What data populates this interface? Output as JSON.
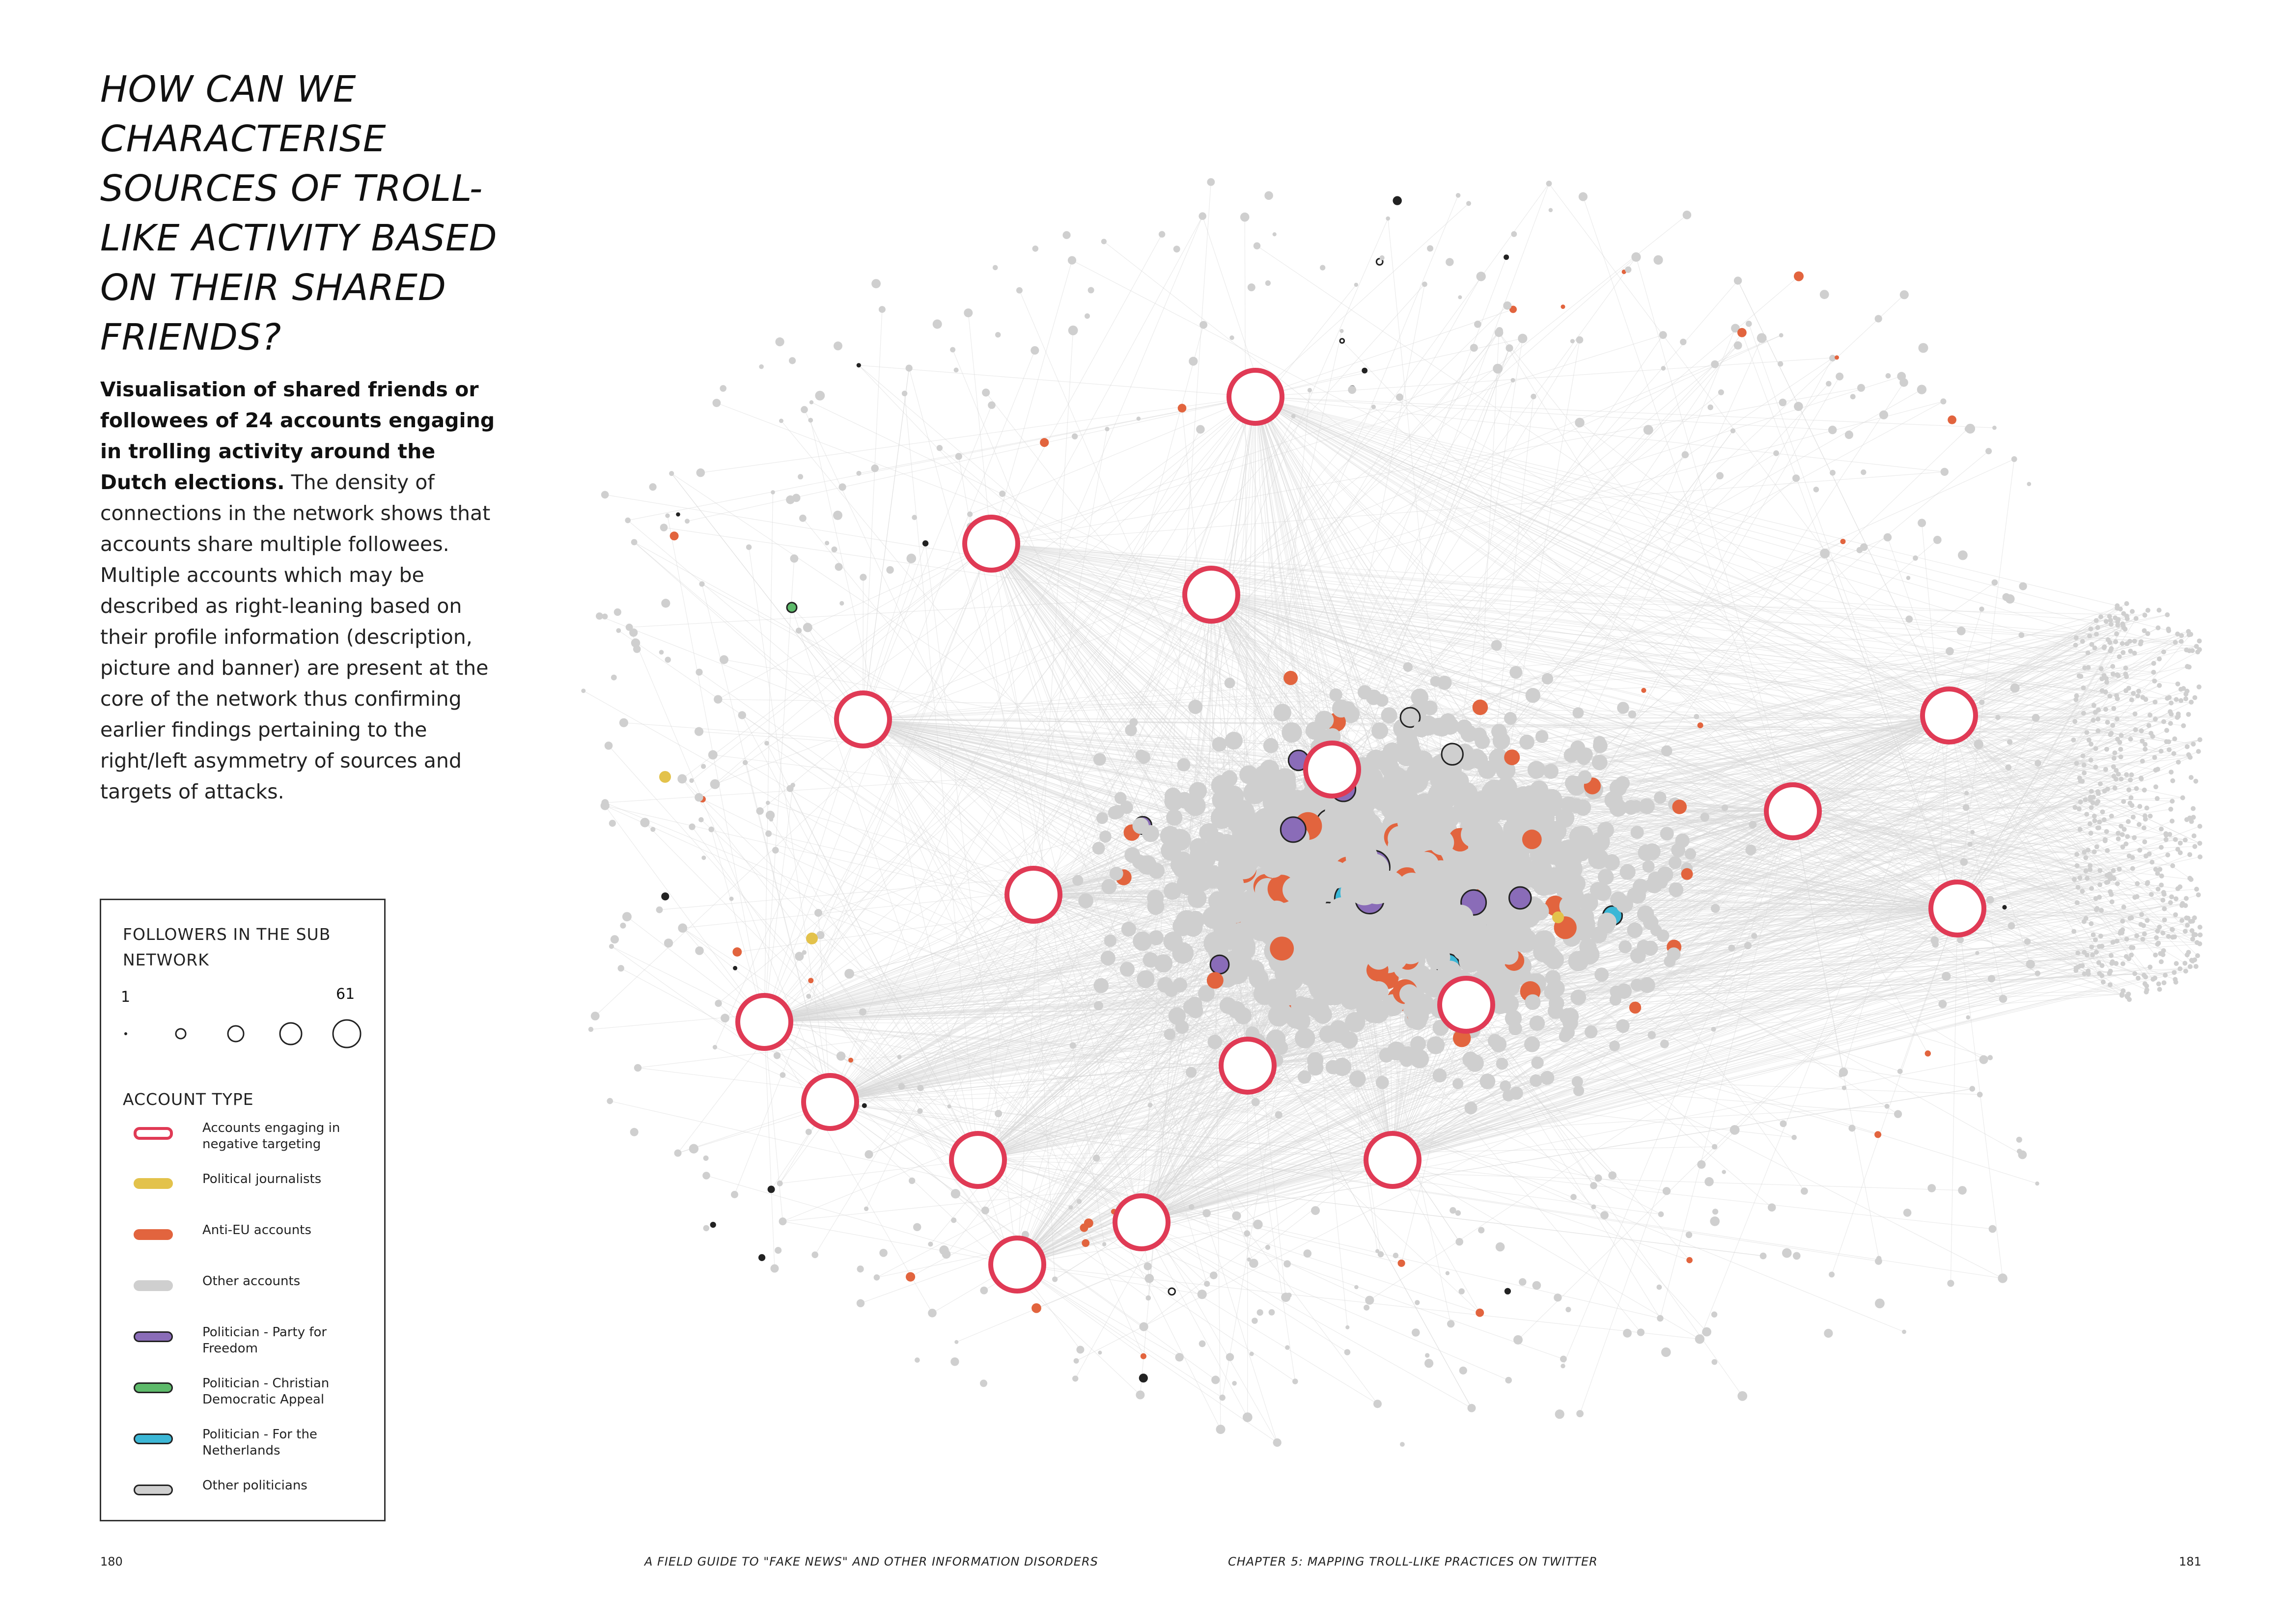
{
  "title_lines": [
    "HOW CAN WE",
    "CHARACTERISE",
    "SOURCES OF TROLL-",
    "LIKE ACTIVITY BASED",
    "ON THEIR SHARED",
    "FRIENDS?"
  ],
  "intro": {
    "bold": "Visualisation of shared friends or followees of 24 accounts engaging in trolling activity around the Dutch elections.",
    "text": " The density of connections in the network shows that accounts share multiple followees. Multiple accounts which may be described as right-leaning based on their profile information (description, picture and banner) are present at the core of the network thus confirming earlier findings pertaining to the right/left asymmetry of sources and targets of attacks."
  },
  "legend": {
    "size_title": "FOLLOWERS IN THE SUB NETWORK",
    "size_min": "1",
    "size_max": "61",
    "type_title": "ACCOUNT TYPE",
    "items": [
      {
        "label": "Accounts engaging in negative targeting",
        "fill": "#ffffff",
        "stroke": "#e03a55"
      },
      {
        "label": "Political journalists",
        "fill": "#e3c24b",
        "stroke": "#e3c24b"
      },
      {
        "label": "Anti-EU accounts",
        "fill": "#e2643e",
        "stroke": "#e2643e"
      },
      {
        "label": "Other accounts",
        "fill": "#cfcfcf",
        "stroke": "#cfcfcf"
      },
      {
        "label": "Politician - Party for Freedom",
        "fill": "#8a6cb8",
        "stroke": "#222222"
      },
      {
        "label": "Politician - Christian Democratic Appeal",
        "fill": "#5dba6a",
        "stroke": "#222222"
      },
      {
        "label": "Politician - For the Netherlands",
        "fill": "#3bb7d6",
        "stroke": "#222222"
      },
      {
        "label": "Other politicians",
        "fill": "#cfcfcf",
        "stroke": "#222222"
      }
    ]
  },
  "footer": {
    "page_left": "180",
    "book_title": "A FIELD GUIDE TO \"FAKE NEWS\" AND OTHER INFORMATION DISORDERS",
    "chapter": "CHAPTER 5: MAPPING TROLL-LIKE PRACTICES ON TWITTER",
    "page_right": "181"
  },
  "colors": {
    "troll_ring": "#e03a55",
    "journalist": "#e3c24b",
    "anti_eu": "#e2643e",
    "other": "#cfcfcf",
    "pvv": "#8a6cb8",
    "cda": "#5dba6a",
    "fvd": "#3bb7d6",
    "edge": "#d8d8d8"
  }
}
